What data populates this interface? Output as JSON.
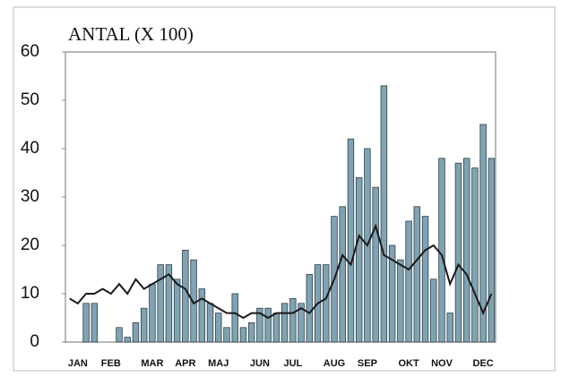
{
  "chart_data": {
    "type": "bar",
    "title": "ANTAL (X 100)",
    "categories": [
      null,
      "JAN",
      null,
      null,
      null,
      "FEB",
      null,
      null,
      null,
      null,
      "MAR",
      null,
      null,
      null,
      "APR",
      null,
      null,
      null,
      "MAJ",
      null,
      null,
      null,
      null,
      "JUN",
      null,
      null,
      null,
      "JUL",
      null,
      null,
      null,
      null,
      "AUG",
      null,
      null,
      null,
      "SEP",
      null,
      null,
      null,
      null,
      "OKT",
      null,
      null,
      null,
      "NOV",
      null,
      null,
      null,
      null,
      "DEC",
      null
    ],
    "values": [
      0,
      0,
      8,
      8,
      0,
      0,
      3,
      1,
      4,
      7,
      12,
      16,
      16,
      13,
      19,
      17,
      11,
      8,
      6,
      3,
      10,
      3,
      4,
      7,
      7,
      6,
      8,
      9,
      8,
      14,
      16,
      16,
      26,
      28,
      42,
      34,
      40,
      32,
      53,
      20,
      17,
      25,
      28,
      26,
      13,
      38,
      6,
      37,
      38,
      36,
      45,
      38
    ],
    "line_values": [
      9,
      8,
      10,
      10,
      11,
      10,
      12,
      10,
      13,
      11,
      12,
      13,
      14,
      12,
      11,
      8,
      9,
      8,
      7,
      6,
      6,
      5,
      6,
      6,
      5,
      6,
      6,
      6,
      7,
      6,
      8,
      9,
      13,
      18,
      16,
      22,
      20,
      24,
      18,
      17,
      16,
      15,
      17,
      19,
      20,
      18,
      12,
      16,
      14,
      10,
      6,
      10
    ],
    "color": "#7fa3b3",
    "line_color": "#1a1a1a",
    "ylim": [
      0,
      60
    ],
    "yticks": [
      0,
      10,
      20,
      30,
      40,
      50,
      60
    ],
    "grid": false
  }
}
